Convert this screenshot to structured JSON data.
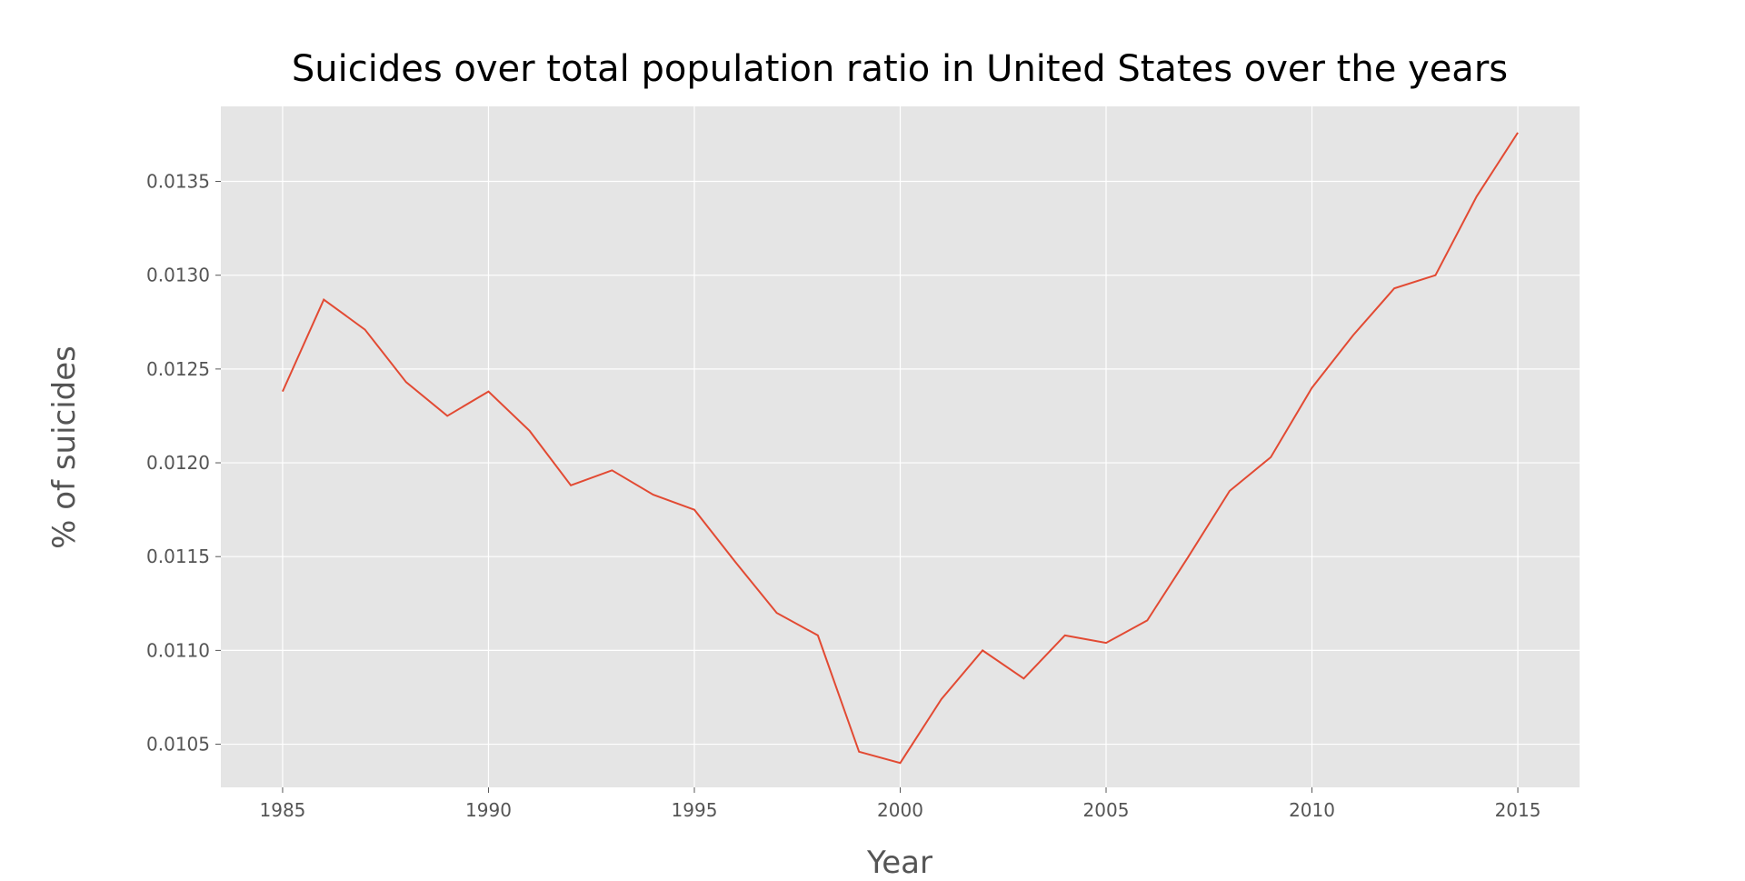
{
  "chart_data": {
    "type": "line",
    "title": "Suicides over total population ratio in United States over the years",
    "xlabel": "Year",
    "ylabel": "% of suicides",
    "xlim": [
      1983.5,
      2016.5
    ],
    "ylim": [
      0.01027,
      0.0139
    ],
    "xticks": [
      "1985",
      "1990",
      "1995",
      "2000",
      "2005",
      "2010",
      "2015"
    ],
    "yticks": [
      "0.0105",
      "0.0110",
      "0.0115",
      "0.0120",
      "0.0125",
      "0.0130",
      "0.0135"
    ],
    "grid": true,
    "colors": {
      "background": "#e5e5e5",
      "grid": "#ffffff",
      "line": "#e24a33"
    },
    "series": [
      {
        "x": [
          1985,
          1986,
          1987,
          1988,
          1989,
          1990,
          1991,
          1992,
          1993,
          1994,
          1995,
          1996,
          1997,
          1998,
          1999,
          2000,
          2001,
          2002,
          2003,
          2004,
          2005,
          2006,
          2007,
          2008,
          2009,
          2010,
          2011,
          2012,
          2013,
          2014,
          2015
        ],
        "values": [
          0.01238,
          0.01287,
          0.01271,
          0.01243,
          0.01225,
          0.01238,
          0.01217,
          0.01188,
          0.01196,
          0.01183,
          0.01175,
          0.01147,
          0.0112,
          0.01108,
          0.01046,
          0.0104,
          0.01074,
          0.011,
          0.01085,
          0.01108,
          0.01104,
          0.01116,
          0.0115,
          0.01185,
          0.01203,
          0.0124,
          0.01268,
          0.01293,
          0.013,
          0.01342,
          0.01376
        ]
      }
    ]
  }
}
